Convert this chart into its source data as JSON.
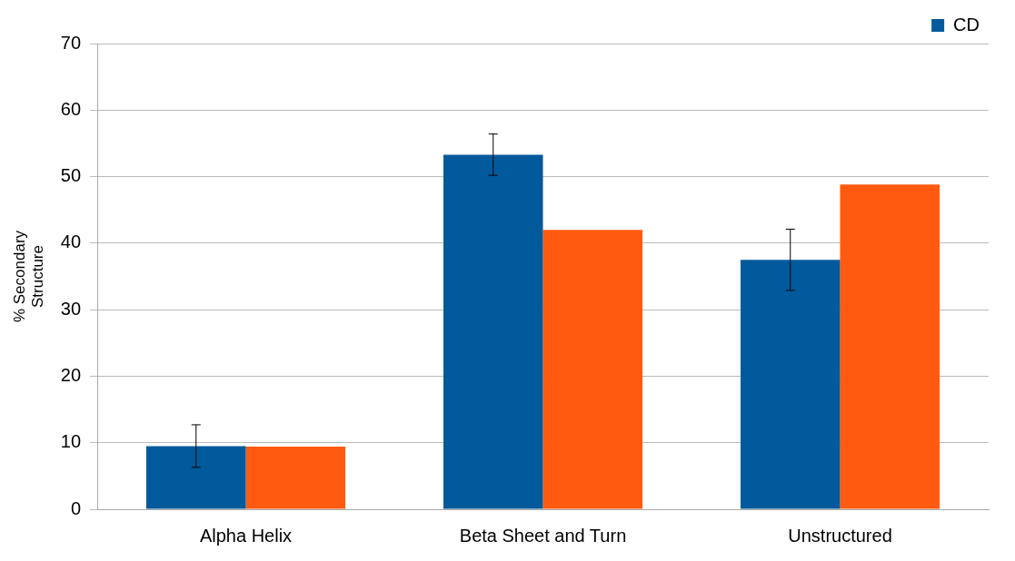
{
  "chart_data": {
    "type": "bar",
    "ylabel": "% Secondary Structure",
    "categories": [
      "Alpha Helix",
      "Beta Sheet and Turn",
      "Unstructured"
    ],
    "series": [
      {
        "name": "CD",
        "color": "#005a9c",
        "values": [
          9.5,
          53.3,
          37.5
        ],
        "errors": [
          3.2,
          3.1,
          4.6
        ]
      },
      {
        "color": "#ff5a0f",
        "values": [
          9.4,
          42.0,
          48.8
        ]
      }
    ],
    "ylim": [
      0,
      70
    ],
    "yticks": [
      0,
      10,
      20,
      30,
      40,
      50,
      60,
      70
    ],
    "grid": "y",
    "legend": "top"
  }
}
